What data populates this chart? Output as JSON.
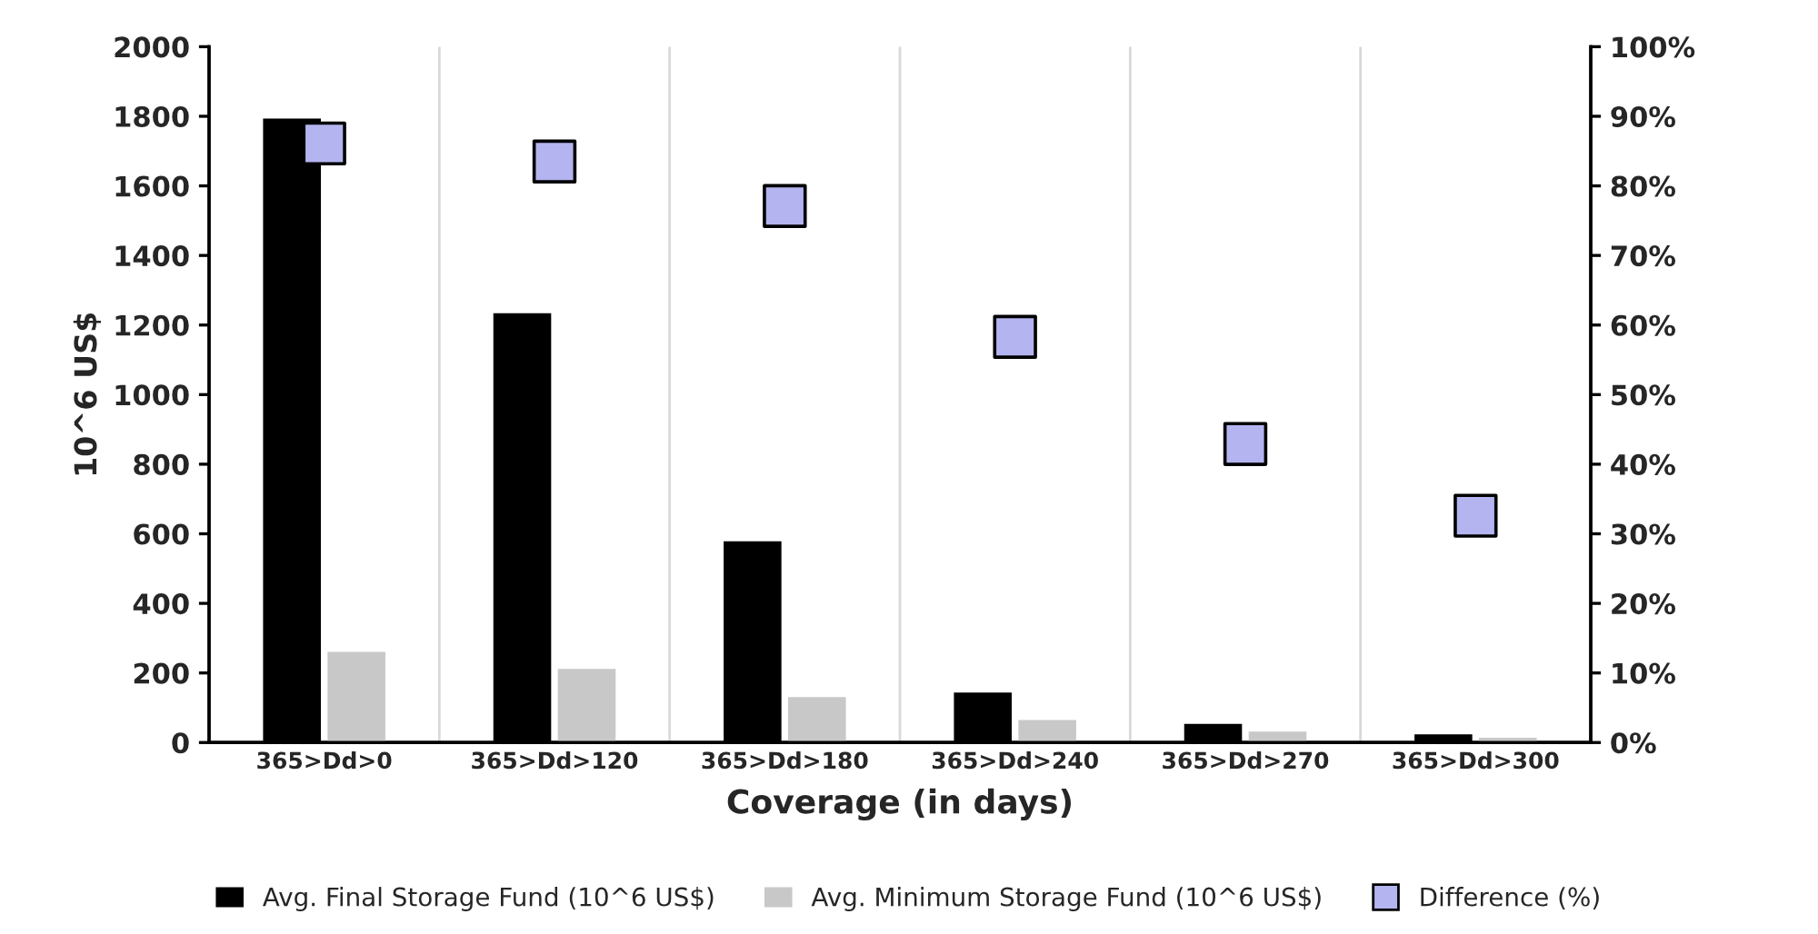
{
  "chart_data": {
    "type": "bar",
    "xlabel": "Coverage (in days)",
    "ylabel": "10^6 US$",
    "categories": [
      "365>Dd>0",
      "365>Dd>120",
      "365>Dd>180",
      "365>Dd>240",
      "365>Dd>270",
      "365>Dd>300"
    ],
    "series": [
      {
        "name": "Avg. Final Storage Fund (10^6 US$)",
        "color": "#000000",
        "values": [
          1790,
          1230,
          575,
          140,
          50,
          20
        ]
      },
      {
        "name": "Avg. Minimum Storage Fund (10^6 US$)",
        "color": "#c8c8c8",
        "values": [
          257,
          208,
          127,
          61,
          28,
          10
        ]
      },
      {
        "name": "Difference (%)",
        "type": "scatter",
        "axis": "y2",
        "color": "#b4b4f0",
        "values": [
          86.1,
          83.5,
          77.1,
          58.3,
          42.9,
          32.6
        ]
      }
    ],
    "ylim": [
      0,
      2000
    ],
    "yticks": [
      0,
      200,
      400,
      600,
      800,
      1000,
      1200,
      1400,
      1600,
      1800,
      2000
    ],
    "y2lim": [
      0,
      100
    ],
    "y2ticks": [
      {
        "value": 0,
        "label": "0%"
      },
      {
        "value": 10,
        "label": "10%"
      },
      {
        "value": 20,
        "label": "20%"
      },
      {
        "value": 30,
        "label": "30%"
      },
      {
        "value": 40,
        "label": "40%"
      },
      {
        "value": 50,
        "label": "50%"
      },
      {
        "value": 60,
        "label": "60%"
      },
      {
        "value": 70,
        "label": "70%"
      },
      {
        "value": 80,
        "label": "80%"
      },
      {
        "value": 90,
        "label": "90%"
      },
      {
        "value": 100,
        "label": "100%"
      }
    ],
    "grid": "x",
    "legend": "bottom",
    "marker": "square"
  }
}
